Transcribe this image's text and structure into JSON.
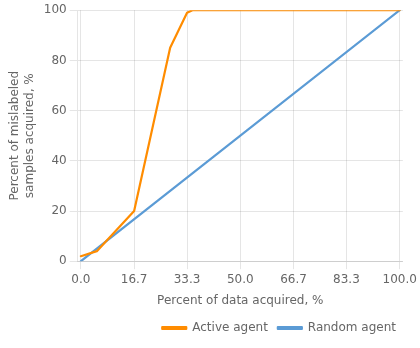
{
  "chart_data": {
    "type": "line",
    "xlabel": "Percent of data acquired, %",
    "ylabel": "Percent of mislabeled\nsamples acquired, %",
    "series": [
      {
        "name": "Active agent",
        "color": "#FF8C00",
        "x": [
          0.0,
          5.0,
          16.7,
          28.0,
          33.3,
          35.0,
          100.0
        ],
        "values": [
          2.0,
          4.0,
          20.0,
          85.0,
          99.0,
          100.0,
          100.0
        ]
      },
      {
        "name": "Random agent",
        "color": "#5B9BD5",
        "x": [
          0.0,
          100.0
        ],
        "values": [
          0.0,
          100.0
        ]
      }
    ],
    "xlim": [
      -1.0,
      101.0
    ],
    "ylim": [
      0,
      100
    ],
    "xticks": [
      {
        "value": 0.0,
        "label": "0.0"
      },
      {
        "value": 16.7,
        "label": "16.7"
      },
      {
        "value": 33.3,
        "label": "33.3"
      },
      {
        "value": 50.0,
        "label": "50.0"
      },
      {
        "value": 66.7,
        "label": "66.7"
      },
      {
        "value": 83.3,
        "label": "83.3"
      },
      {
        "value": 100.0,
        "label": "100.0"
      }
    ],
    "yticks": [
      0,
      20,
      40,
      60,
      80,
      100
    ],
    "grid": true,
    "legend": "lower right"
  }
}
